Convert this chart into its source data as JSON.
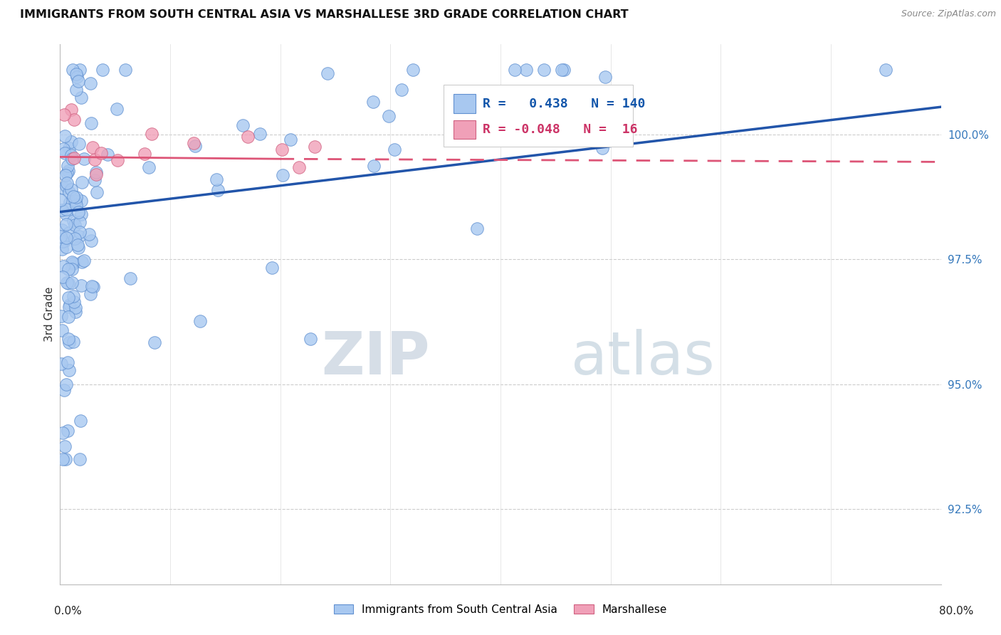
{
  "title": "IMMIGRANTS FROM SOUTH CENTRAL ASIA VS MARSHALLESE 3RD GRADE CORRELATION CHART",
  "source": "Source: ZipAtlas.com",
  "ylabel": "3rd Grade",
  "y_ticks": [
    92.5,
    95.0,
    97.5,
    100.0
  ],
  "y_tick_labels": [
    "92.5%",
    "95.0%",
    "97.5%",
    "100.0%"
  ],
  "xlim": [
    0.0,
    80.0
  ],
  "ylim": [
    91.0,
    101.8
  ],
  "legend_blue_label": "Immigrants from South Central Asia",
  "legend_pink_label": "Marshallese",
  "r_blue": 0.438,
  "n_blue": 140,
  "r_pink": -0.048,
  "n_pink": 16,
  "blue_color": "#A8C8F0",
  "pink_color": "#F0A0B8",
  "blue_edge_color": "#6090D0",
  "pink_edge_color": "#D06080",
  "blue_line_color": "#2255AA",
  "pink_line_color": "#DD5577",
  "watermark_zip_color": "#C0CCDD",
  "watermark_atlas_color": "#A8BCCC"
}
